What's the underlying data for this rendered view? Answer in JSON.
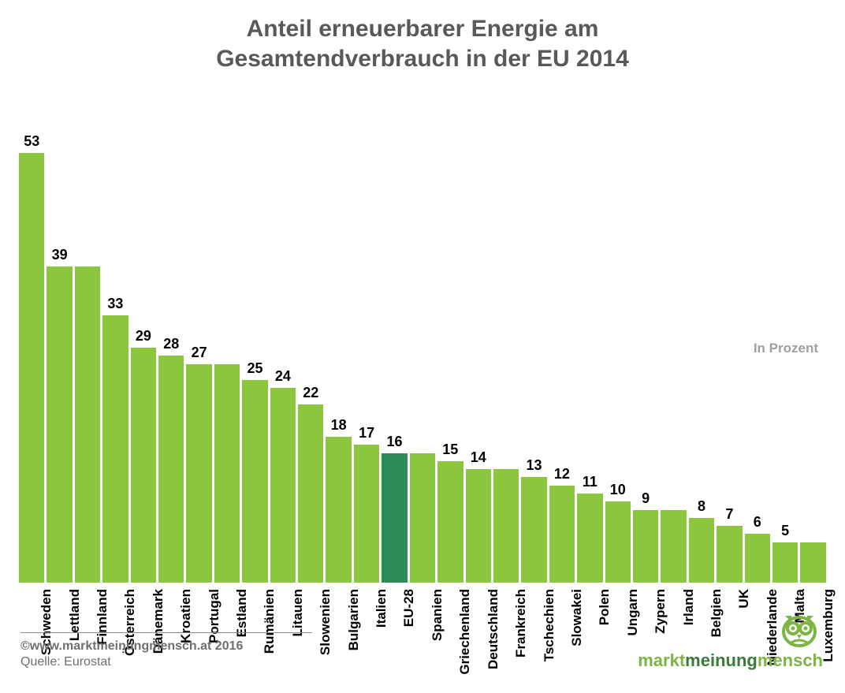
{
  "title_line1": "Anteil erneuerbarer Energie am",
  "title_line2": "Gesamtendverbrauch in der EU 2014",
  "title_fontsize": 30,
  "title_color": "#595959",
  "unit_label": "In Prozent",
  "unit_fontsize": 17,
  "chart": {
    "type": "bar",
    "ymax": 53,
    "value_fontsize": 18,
    "label_fontsize": 17,
    "default_bar_color": "#8cc63f",
    "highlight_bar_color": "#2e8b57",
    "background_color": "#ffffff",
    "bars": [
      {
        "label": "Schweden",
        "value": 53,
        "display": "53",
        "color": "#8cc63f"
      },
      {
        "label": "Lettland",
        "value": 39,
        "display": "39",
        "color": "#8cc63f"
      },
      {
        "label": "Finnland",
        "value": 39,
        "display": "",
        "color": "#8cc63f"
      },
      {
        "label": "Österreich",
        "value": 33,
        "display": "33",
        "color": "#8cc63f"
      },
      {
        "label": "Dänemark",
        "value": 29,
        "display": "29",
        "color": "#8cc63f"
      },
      {
        "label": "Kroatien",
        "value": 28,
        "display": "28",
        "color": "#8cc63f"
      },
      {
        "label": "Portugal",
        "value": 27,
        "display": "27",
        "color": "#8cc63f"
      },
      {
        "label": "Estland",
        "value": 27,
        "display": "",
        "color": "#8cc63f"
      },
      {
        "label": "Rumänien",
        "value": 25,
        "display": "25",
        "color": "#8cc63f"
      },
      {
        "label": "Litauen",
        "value": 24,
        "display": "24",
        "color": "#8cc63f"
      },
      {
        "label": "Slowenien",
        "value": 22,
        "display": "22",
        "color": "#8cc63f"
      },
      {
        "label": "Bulgarien",
        "value": 18,
        "display": "18",
        "color": "#8cc63f"
      },
      {
        "label": "Italien",
        "value": 17,
        "display": "17",
        "color": "#8cc63f"
      },
      {
        "label": "EU-28",
        "value": 16,
        "display": "16",
        "color": "#2e8b57"
      },
      {
        "label": "Spanien",
        "value": 16,
        "display": "",
        "color": "#8cc63f"
      },
      {
        "label": "Griechenland",
        "value": 15,
        "display": "15",
        "color": "#8cc63f"
      },
      {
        "label": "Deutschland",
        "value": 14,
        "display": "14",
        "color": "#8cc63f"
      },
      {
        "label": "Frankreich",
        "value": 14,
        "display": "",
        "color": "#8cc63f"
      },
      {
        "label": "Tschechien",
        "value": 13,
        "display": "13",
        "color": "#8cc63f"
      },
      {
        "label": "Slowakei",
        "value": 12,
        "display": "12",
        "color": "#8cc63f"
      },
      {
        "label": "Polen",
        "value": 11,
        "display": "11",
        "color": "#8cc63f"
      },
      {
        "label": "Ungarn",
        "value": 10,
        "display": "10",
        "color": "#8cc63f"
      },
      {
        "label": "Zypern",
        "value": 9,
        "display": "9",
        "color": "#8cc63f"
      },
      {
        "label": "Irland",
        "value": 9,
        "display": "",
        "color": "#8cc63f"
      },
      {
        "label": "Belgien",
        "value": 8,
        "display": "8",
        "color": "#8cc63f"
      },
      {
        "label": "UK",
        "value": 7,
        "display": "7",
        "color": "#8cc63f"
      },
      {
        "label": "Niederlande",
        "value": 6,
        "display": "6",
        "color": "#8cc63f"
      },
      {
        "label": "Malta",
        "value": 5,
        "display": "5",
        "color": "#8cc63f"
      },
      {
        "label": "Luxemburg",
        "value": 5,
        "display": "",
        "color": "#8cc63f"
      }
    ]
  },
  "footer": {
    "copyright": "©www.marktmeinungmensch.at 2016",
    "source": "Quelle: Eurostat",
    "fontsize": 16
  },
  "logo": {
    "word1": "markt",
    "word2": "meinung",
    "word3": "mensch",
    "fontsize": 22,
    "color_outer": "#7db442",
    "color_mid": "#3a7a3a"
  }
}
